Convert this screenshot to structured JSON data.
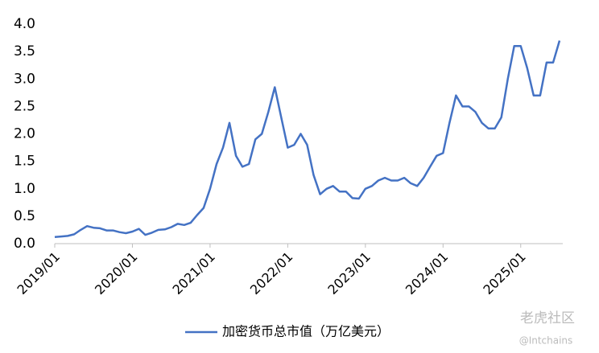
{
  "chart_data": {
    "type": "line",
    "x": [
      "2019/01",
      "2019/02",
      "2019/03",
      "2019/04",
      "2019/05",
      "2019/06",
      "2019/07",
      "2019/08",
      "2019/09",
      "2019/10",
      "2019/11",
      "2019/12",
      "2020/01",
      "2020/02",
      "2020/03",
      "2020/04",
      "2020/05",
      "2020/06",
      "2020/07",
      "2020/08",
      "2020/09",
      "2020/10",
      "2020/11",
      "2020/12",
      "2021/01",
      "2021/02",
      "2021/03",
      "2021/04",
      "2021/05",
      "2021/06",
      "2021/07",
      "2021/08",
      "2021/09",
      "2021/10",
      "2021/11",
      "2021/12",
      "2022/01",
      "2022/02",
      "2022/03",
      "2022/04",
      "2022/05",
      "2022/06",
      "2022/07",
      "2022/08",
      "2022/09",
      "2022/10",
      "2022/11",
      "2022/12",
      "2023/01",
      "2023/02",
      "2023/03",
      "2023/04",
      "2023/05",
      "2023/06",
      "2023/07",
      "2023/08",
      "2023/09",
      "2023/10",
      "2023/11",
      "2023/12",
      "2024/01",
      "2024/02",
      "2024/03",
      "2024/04",
      "2024/05",
      "2024/06",
      "2024/07",
      "2024/08",
      "2024/09",
      "2024/10",
      "2024/11",
      "2024/12",
      "2025/01",
      "2025/02",
      "2025/03",
      "2025/04",
      "2025/05",
      "2025/06",
      "2025/07"
    ],
    "series": [
      {
        "name": "加密货币总市值（万亿美元）",
        "color": "#4472c4",
        "values": [
          0.12,
          0.13,
          0.14,
          0.17,
          0.25,
          0.32,
          0.29,
          0.28,
          0.24,
          0.24,
          0.21,
          0.19,
          0.22,
          0.27,
          0.16,
          0.2,
          0.25,
          0.26,
          0.3,
          0.36,
          0.34,
          0.38,
          0.52,
          0.65,
          1.0,
          1.45,
          1.75,
          2.2,
          1.6,
          1.4,
          1.45,
          1.9,
          2.0,
          2.4,
          2.85,
          2.3,
          1.75,
          1.8,
          2.0,
          1.8,
          1.25,
          0.9,
          1.0,
          1.05,
          0.95,
          0.95,
          0.83,
          0.82,
          1.0,
          1.05,
          1.15,
          1.2,
          1.15,
          1.15,
          1.2,
          1.1,
          1.05,
          1.2,
          1.4,
          1.6,
          1.65,
          2.2,
          2.7,
          2.5,
          2.5,
          2.4,
          2.2,
          2.1,
          2.1,
          2.3,
          3.0,
          3.6,
          3.6,
          3.2,
          2.7,
          2.7,
          3.3,
          3.3,
          3.7
        ]
      }
    ],
    "xticks": [
      "2019/01",
      "2020/01",
      "2021/01",
      "2022/01",
      "2023/01",
      "2024/01",
      "2025/01"
    ],
    "ylim": [
      0,
      4
    ],
    "yticks": [
      {
        "value": 0,
        "label": "0.0"
      },
      {
        "value": 0.5,
        "label": "0.5"
      },
      {
        "value": 1,
        "label": "1.0"
      },
      {
        "value": 1.5,
        "label": "1.5"
      },
      {
        "value": 2,
        "label": "2.0"
      },
      {
        "value": 2.5,
        "label": "2.5"
      },
      {
        "value": 3,
        "label": "3.0"
      },
      {
        "value": 3.5,
        "label": "3.5"
      },
      {
        "value": 4,
        "label": "4.0"
      }
    ],
    "grid": false,
    "legend": "bottom"
  },
  "watermark": {
    "brand": "老虎社区",
    "handle": "@Intchains"
  }
}
